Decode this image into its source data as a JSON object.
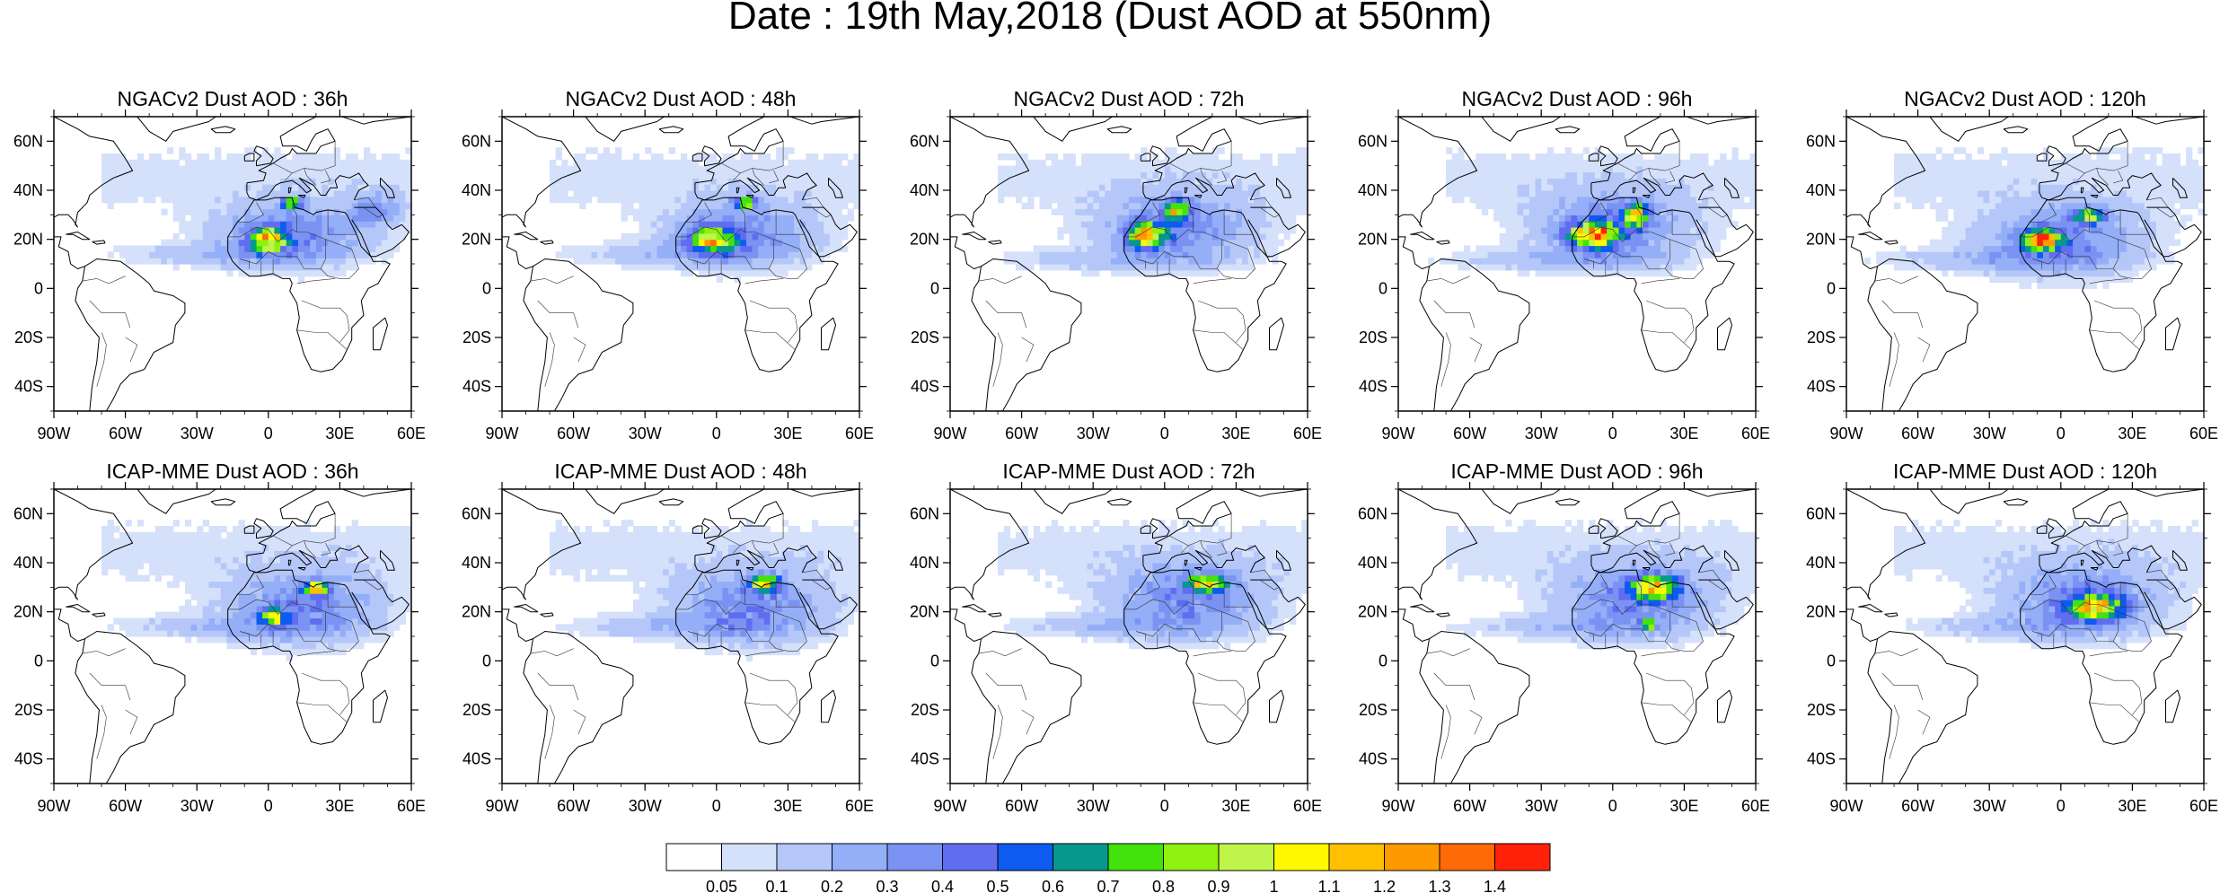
{
  "figure": {
    "title": "Date : 19th May,2018 (Dust AOD at 550nm)"
  },
  "panels": [
    {
      "title": "NGACv2 Dust AOD : 36h",
      "model": "NGACv2",
      "lead": "36h"
    },
    {
      "title": "NGACv2 Dust AOD : 48h",
      "model": "NGACv2",
      "lead": "48h"
    },
    {
      "title": "NGACv2 Dust AOD : 72h",
      "model": "NGACv2",
      "lead": "72h"
    },
    {
      "title": "NGACv2 Dust AOD : 96h",
      "model": "NGACv2",
      "lead": "96h"
    },
    {
      "title": "NGACv2 Dust AOD : 120h",
      "model": "NGACv2",
      "lead": "120h"
    },
    {
      "title": "ICAP-MME Dust AOD : 36h",
      "model": "ICAP-MME",
      "lead": "36h"
    },
    {
      "title": "ICAP-MME Dust AOD : 48h",
      "model": "ICAP-MME",
      "lead": "48h"
    },
    {
      "title": "ICAP-MME Dust AOD : 72h",
      "model": "ICAP-MME",
      "lead": "72h"
    },
    {
      "title": "ICAP-MME Dust AOD : 96h",
      "model": "ICAP-MME",
      "lead": "96h"
    },
    {
      "title": "ICAP-MME Dust AOD : 120h",
      "model": "ICAP-MME",
      "lead": "120h"
    }
  ],
  "axes": {
    "lon_range": [
      -90,
      60
    ],
    "lat_range": [
      -50,
      70
    ],
    "lon_ticks": [
      {
        "value": -90,
        "label": "90W"
      },
      {
        "value": -60,
        "label": "60W"
      },
      {
        "value": -30,
        "label": "30W"
      },
      {
        "value": 0,
        "label": "0"
      },
      {
        "value": 30,
        "label": "30E"
      },
      {
        "value": 60,
        "label": "60E"
      }
    ],
    "lat_ticks": [
      {
        "value": 60,
        "label": "60N"
      },
      {
        "value": 40,
        "label": "40N"
      },
      {
        "value": 20,
        "label": "20N"
      },
      {
        "value": 0,
        "label": "0"
      },
      {
        "value": -20,
        "label": "20S"
      },
      {
        "value": -40,
        "label": "40S"
      }
    ]
  },
  "colorbar": {
    "colors": [
      "#ffffff",
      "#d5e0fb",
      "#b4c7f8",
      "#94aef8",
      "#7a93f3",
      "#606df0",
      "#0d5bef",
      "#06978e",
      "#42e30c",
      "#8ef10f",
      "#bff54a",
      "#fff800",
      "#fec000",
      "#fe9900",
      "#fe6a05",
      "#ff2208"
    ],
    "labels": [
      "0.05",
      "0.1",
      "0.2",
      "0.3",
      "0.4",
      "0.5",
      "0.6",
      "0.7",
      "0.8",
      "0.9",
      "1",
      "1.1",
      "1.2",
      "1.3",
      "1.4"
    ]
  },
  "chart_data": {
    "type": "heatmap",
    "title": "Date : 19th May,2018 (Dust AOD at 550nm)",
    "variable": "Dust AOD at 550nm",
    "date": "19th May,2018",
    "models": [
      "NGACv2",
      "ICAP-MME"
    ],
    "forecast_leads": [
      "36h",
      "48h",
      "72h",
      "96h",
      "120h"
    ],
    "lon_range": [
      -90,
      60
    ],
    "lat_range": [
      -50,
      70
    ],
    "color_levels": [
      0.05,
      0.1,
      0.2,
      0.3,
      0.4,
      0.5,
      0.6,
      0.7,
      0.8,
      0.9,
      1,
      1.1,
      1.2,
      1.3,
      1.4
    ],
    "fields": [
      {
        "panel": "NGACv2 Dust AOD : 36h",
        "plumes": [
          {
            "lon": 10,
            "lat": 22,
            "rlon": 38,
            "rlat": 16,
            "aod": 0.35
          },
          {
            "lon": -20,
            "lat": 14,
            "rlon": 55,
            "rlat": 6,
            "aod": 0.15
          },
          {
            "lon": 0,
            "lat": 20,
            "rlon": 10,
            "rlat": 6,
            "aod": 0.8
          },
          {
            "lon": 10,
            "lat": 35,
            "rlon": 5,
            "rlat": 3,
            "aod": 0.75
          },
          {
            "lon": 45,
            "lat": 32,
            "rlon": 14,
            "rlat": 8,
            "aod": 0.3
          }
        ]
      },
      {
        "panel": "NGACv2 Dust AOD : 48h",
        "plumes": [
          {
            "lon": 10,
            "lat": 22,
            "rlon": 38,
            "rlat": 16,
            "aod": 0.35
          },
          {
            "lon": -20,
            "lat": 14,
            "rlon": 55,
            "rlat": 6,
            "aod": 0.15
          },
          {
            "lon": -2,
            "lat": 20,
            "rlon": 11,
            "rlat": 6,
            "aod": 0.85
          },
          {
            "lon": 12,
            "lat": 35,
            "rlon": 6,
            "rlat": 3,
            "aod": 0.75
          }
        ]
      },
      {
        "panel": "NGACv2 Dust AOD : 72h",
        "plumes": [
          {
            "lon": 5,
            "lat": 25,
            "rlon": 40,
            "rlat": 17,
            "aod": 0.35
          },
          {
            "lon": -20,
            "lat": 12,
            "rlon": 60,
            "rlat": 6,
            "aod": 0.15
          },
          {
            "lon": -8,
            "lat": 22,
            "rlon": 9,
            "rlat": 6,
            "aod": 1.05
          },
          {
            "lon": 5,
            "lat": 32,
            "rlon": 6,
            "rlat": 5,
            "aod": 0.8
          }
        ]
      },
      {
        "panel": "NGACv2 Dust AOD : 96h",
        "plumes": [
          {
            "lon": 0,
            "lat": 25,
            "rlon": 40,
            "rlat": 18,
            "aod": 0.35
          },
          {
            "lon": -25,
            "lat": 12,
            "rlon": 60,
            "rlat": 6,
            "aod": 0.15
          },
          {
            "lon": -8,
            "lat": 22,
            "rlon": 12,
            "rlat": 6,
            "aod": 1.1
          },
          {
            "lon": 10,
            "lat": 30,
            "rlon": 6,
            "rlat": 6,
            "aod": 0.8
          }
        ]
      },
      {
        "panel": "NGACv2 Dust AOD : 120h",
        "plumes": [
          {
            "lon": 0,
            "lat": 20,
            "rlon": 42,
            "rlat": 18,
            "aod": 0.35
          },
          {
            "lon": -30,
            "lat": 12,
            "rlon": 60,
            "rlat": 6,
            "aod": 0.15
          },
          {
            "lon": -8,
            "lat": 20,
            "rlon": 9,
            "rlat": 5,
            "aod": 1.15
          },
          {
            "lon": 12,
            "lat": 30,
            "rlon": 8,
            "rlat": 4,
            "aod": 0.75
          }
        ]
      },
      {
        "panel": "ICAP-MME Dust AOD : 36h",
        "plumes": [
          {
            "lon": 15,
            "lat": 22,
            "rlon": 40,
            "rlat": 18,
            "aod": 0.35
          },
          {
            "lon": -20,
            "lat": 14,
            "rlon": 55,
            "rlat": 6,
            "aod": 0.15
          },
          {
            "lon": 2,
            "lat": 18,
            "rlon": 6,
            "rlat": 4,
            "aod": 0.8
          },
          {
            "lon": 20,
            "lat": 30,
            "rlon": 6,
            "rlat": 3,
            "aod": 1.0
          }
        ]
      },
      {
        "panel": "ICAP-MME Dust AOD : 48h",
        "plumes": [
          {
            "lon": 15,
            "lat": 22,
            "rlon": 40,
            "rlat": 18,
            "aod": 0.35
          },
          {
            "lon": -20,
            "lat": 14,
            "rlon": 55,
            "rlat": 6,
            "aod": 0.15
          },
          {
            "lon": 20,
            "lat": 32,
            "rlon": 8,
            "rlat": 4,
            "aod": 0.8
          }
        ]
      },
      {
        "panel": "ICAP-MME Dust AOD : 72h",
        "plumes": [
          {
            "lon": 10,
            "lat": 25,
            "rlon": 40,
            "rlat": 18,
            "aod": 0.35
          },
          {
            "lon": -20,
            "lat": 14,
            "rlon": 55,
            "rlat": 6,
            "aod": 0.15
          },
          {
            "lon": 18,
            "lat": 32,
            "rlon": 10,
            "rlat": 4,
            "aod": 0.85
          }
        ]
      },
      {
        "panel": "ICAP-MME Dust AOD : 96h",
        "plumes": [
          {
            "lon": 10,
            "lat": 25,
            "rlon": 40,
            "rlat": 18,
            "aod": 0.35
          },
          {
            "lon": -20,
            "lat": 14,
            "rlon": 55,
            "rlat": 6,
            "aod": 0.15
          },
          {
            "lon": 18,
            "lat": 30,
            "rlon": 12,
            "rlat": 6,
            "aod": 0.85
          },
          {
            "lon": 15,
            "lat": 15,
            "rlon": 3,
            "rlat": 2,
            "aod": 1.2
          }
        ]
      },
      {
        "panel": "ICAP-MME Dust AOD : 120h",
        "plumes": [
          {
            "lon": 10,
            "lat": 25,
            "rlon": 40,
            "rlat": 18,
            "aod": 0.35
          },
          {
            "lon": -20,
            "lat": 14,
            "rlon": 55,
            "rlat": 6,
            "aod": 0.15
          },
          {
            "lon": 15,
            "lat": 22,
            "rlon": 14,
            "rlat": 6,
            "aod": 0.85
          }
        ]
      }
    ]
  }
}
